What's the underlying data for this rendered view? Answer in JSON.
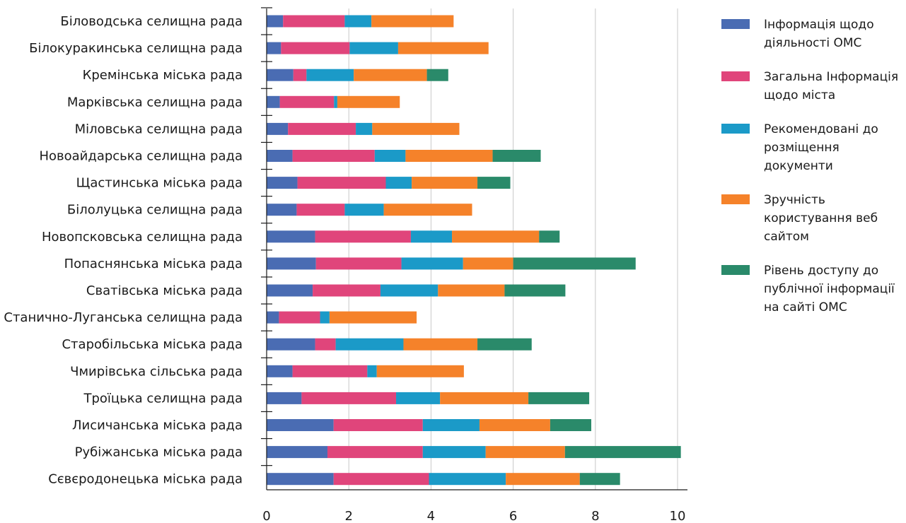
{
  "chart_data": {
    "type": "bar",
    "orientation": "horizontal",
    "stacked": true,
    "title": "",
    "xlabel": "",
    "ylabel": "",
    "xlim": [
      0,
      10
    ],
    "x_ticks": [
      "0",
      "2",
      "4",
      "6",
      "8",
      "10"
    ],
    "grid": "vertical",
    "legend_position": "right",
    "categories": [
      "Біловодська селищна рада",
      "Білокуракинська селищна рада",
      "Кремінська міська рада",
      "Марківська селищна рада",
      "Міловська селищна рада",
      "Новоайдарська селищна рада",
      "Щастинська міська рада",
      "Білолуцька селищна рада",
      "Новопсковська селищна рада",
      "Попаснянська міська рада",
      "Сватівська міська рада",
      "Станично-Луганська селищна рада",
      "Старобільська міська рада",
      "Чмирівська сільська рада",
      "Троїцька селищна рада",
      "Лисичанська міська рада",
      "Рубіжанська міська рада",
      "Сєвєродонецька міська рада"
    ],
    "series": [
      {
        "name": "Інформація щодо діяльності ОМС",
        "color": "#4a6cb3",
        "values": [
          0.4,
          0.35,
          0.65,
          0.32,
          0.52,
          0.63,
          0.75,
          0.73,
          1.18,
          1.2,
          1.12,
          0.3,
          1.18,
          0.63,
          0.85,
          1.63,
          1.48,
          1.63
        ]
      },
      {
        "name": "Загальна Інформація щодо міста",
        "color": "#e0457b",
        "values": [
          1.5,
          1.67,
          0.32,
          1.32,
          1.65,
          2.0,
          2.15,
          1.17,
          2.33,
          2.08,
          1.65,
          1.0,
          0.5,
          1.82,
          2.3,
          2.17,
          2.32,
          2.32
        ]
      },
      {
        "name": "Рекомендовані до розміщення документи",
        "color": "#1b9ac8",
        "values": [
          0.65,
          1.18,
          1.15,
          0.08,
          0.4,
          0.75,
          0.63,
          0.95,
          1.0,
          1.5,
          1.4,
          0.23,
          1.65,
          0.23,
          1.07,
          1.38,
          1.53,
          1.87
        ]
      },
      {
        "name": "Зручність користування веб сайтом",
        "color": "#f5822a",
        "values": [
          2.0,
          2.2,
          1.78,
          1.52,
          2.12,
          2.12,
          1.6,
          2.15,
          2.12,
          1.22,
          1.62,
          2.12,
          1.8,
          2.12,
          2.15,
          1.72,
          1.93,
          1.8
        ]
      },
      {
        "name": "Рівень доступу до публічної інформації на сайті ОМС",
        "color": "#2a8a6a",
        "values": [
          0,
          0,
          0.52,
          0,
          0,
          1.17,
          0.8,
          0,
          0.5,
          2.98,
          1.48,
          0,
          1.32,
          0,
          1.48,
          1.0,
          2.82,
          0.98
        ]
      }
    ]
  }
}
